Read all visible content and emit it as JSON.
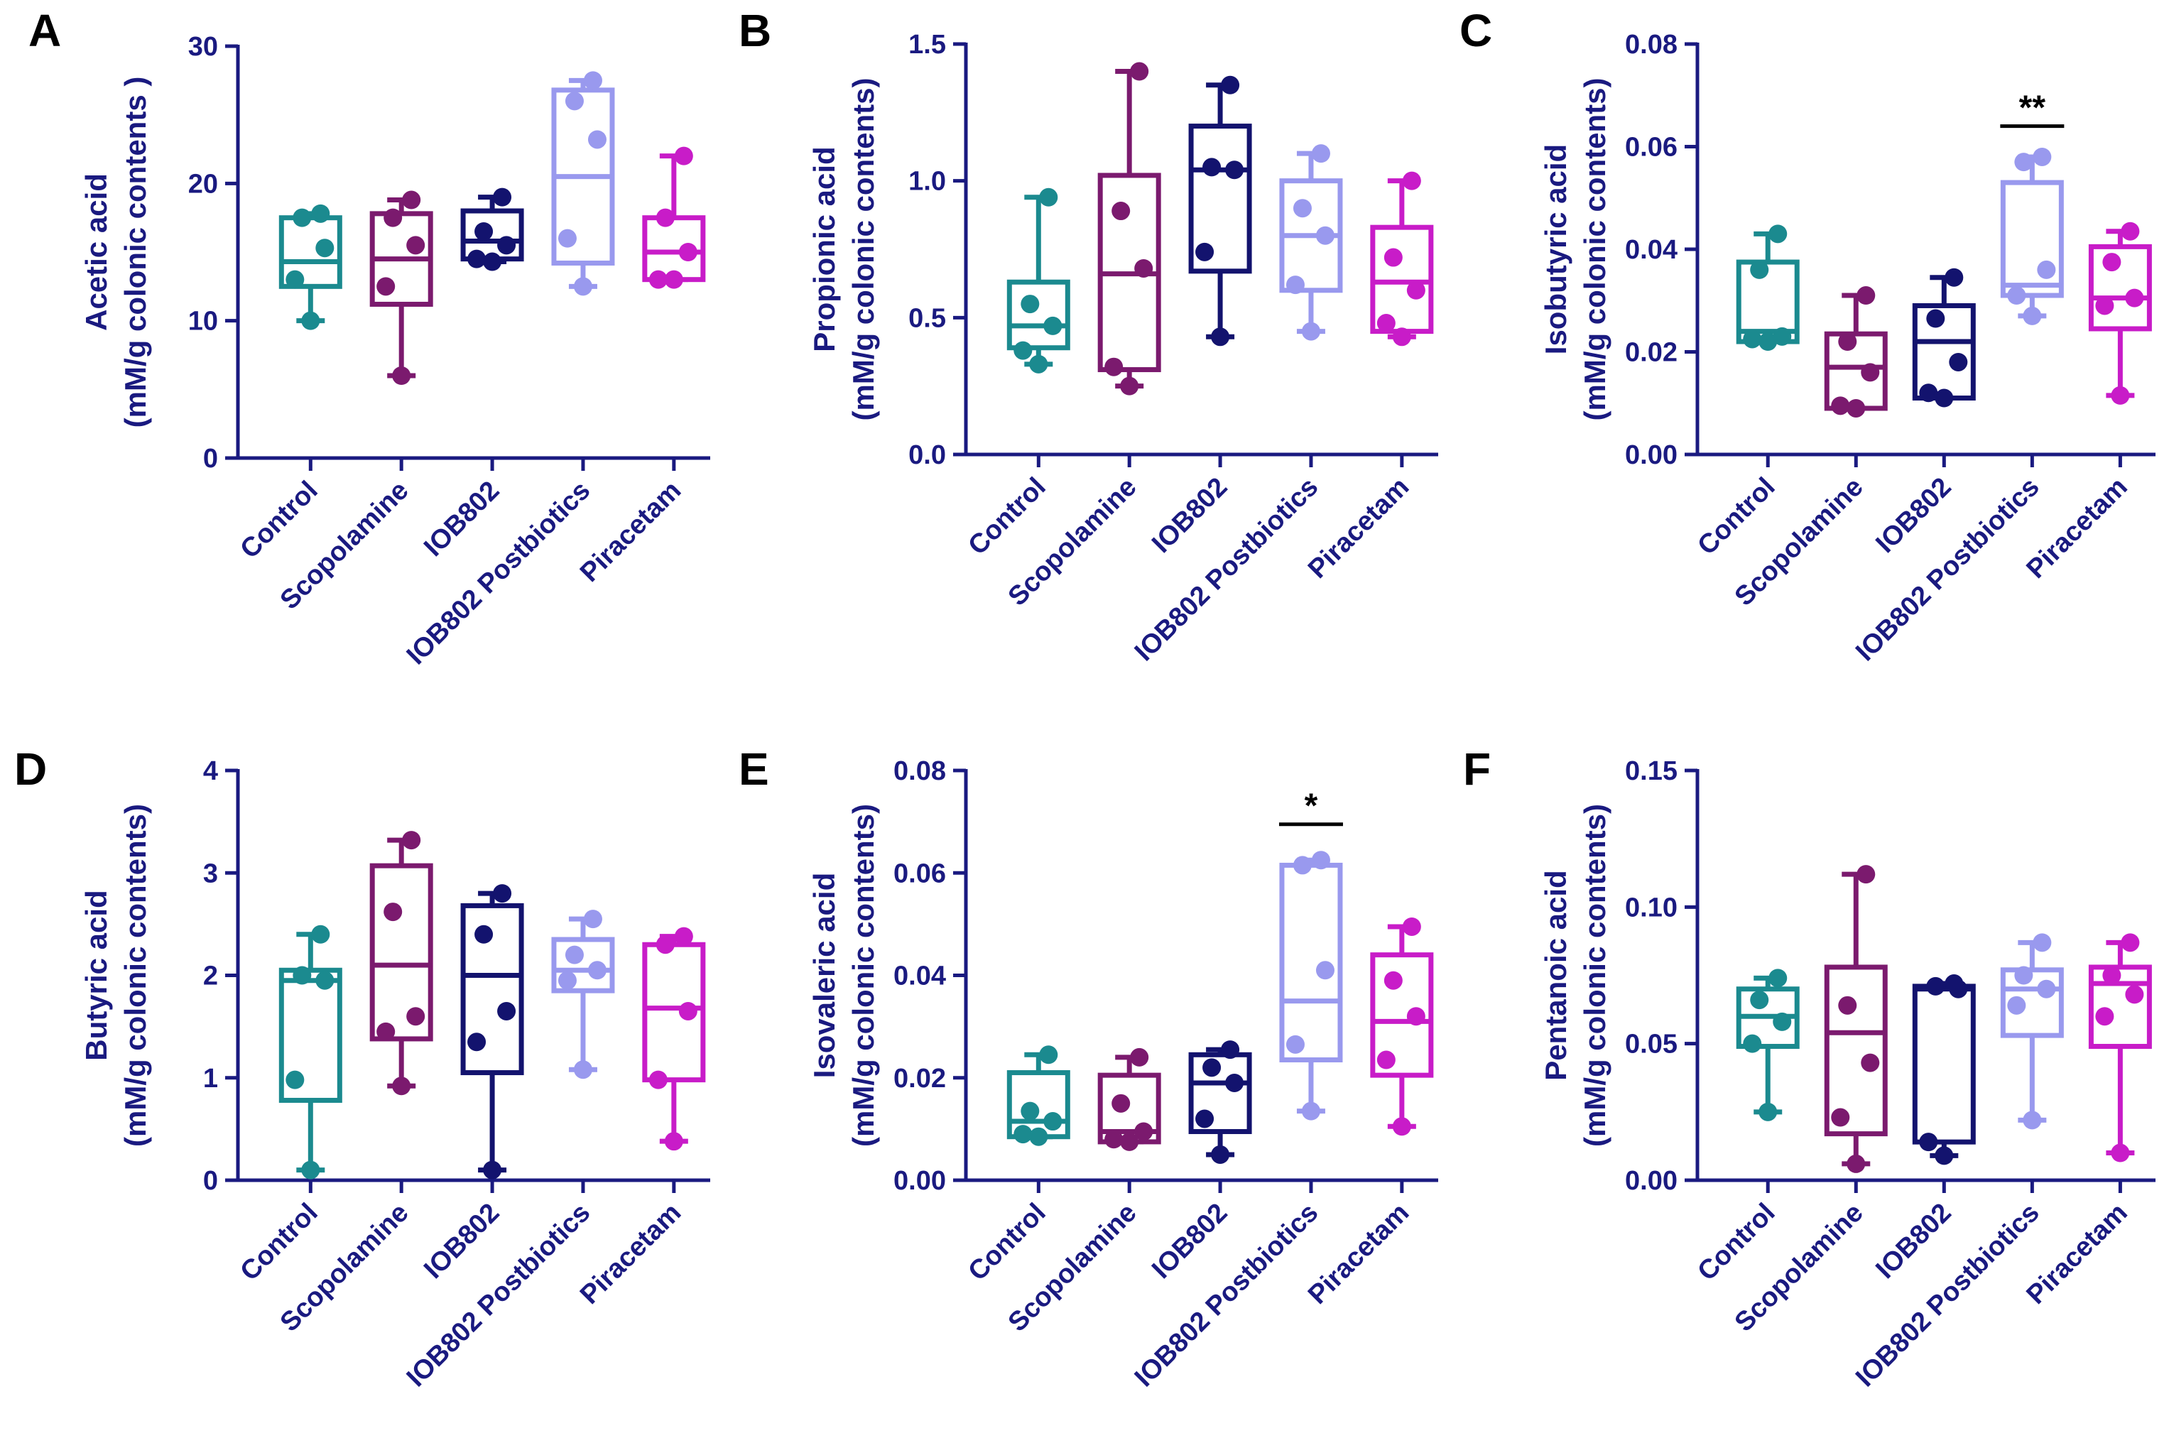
{
  "chart_data": [
    {
      "panel": "A",
      "type": "box",
      "ylabel_line1": "Acetic acid",
      "ylabel_line2": "(mM/g colonic contents )",
      "ylim": [
        0,
        30
      ],
      "yticks": [
        0,
        10,
        20,
        30
      ],
      "ytick_labels": [
        "0",
        "10",
        "20",
        "30"
      ],
      "categories": [
        "Control",
        "Scopolamine",
        "IOB802",
        "IOB802 Postbiotics",
        "Piracetam"
      ],
      "boxes": [
        {
          "min": 10,
          "q1": 12.5,
          "median": 14.3,
          "q3": 17.5,
          "max": 17.8,
          "points": [
            10,
            13,
            15.3,
            17.5,
            17.8
          ]
        },
        {
          "min": 6,
          "q1": 11.2,
          "median": 14.5,
          "q3": 17.8,
          "max": 18.8,
          "points": [
            6,
            12.5,
            15.5,
            17.5,
            18.8
          ]
        },
        {
          "min": 14.3,
          "q1": 14.5,
          "median": 15.8,
          "q3": 18,
          "max": 19,
          "points": [
            14.3,
            14.5,
            15.5,
            16.5,
            19
          ]
        },
        {
          "min": 12.5,
          "q1": 14.2,
          "median": 20.5,
          "q3": 26.8,
          "max": 27.5,
          "points": [
            12.5,
            16,
            23.2,
            26,
            27.5
          ]
        },
        {
          "min": 13,
          "q1": 13,
          "median": 15,
          "q3": 17.5,
          "max": 22,
          "points": [
            13,
            13,
            15,
            17.5,
            22
          ]
        }
      ],
      "significance": []
    },
    {
      "panel": "B",
      "type": "box",
      "ylabel_line1": "Propionic acid",
      "ylabel_line2": "(mM/g colonic contents)",
      "ylim": [
        0,
        1.5
      ],
      "yticks": [
        0,
        0.5,
        1.0,
        1.5
      ],
      "ytick_labels": [
        "0.0",
        "0.5",
        "1.0",
        "1.5"
      ],
      "categories": [
        "Control",
        "Scopolamine",
        "IOB802",
        "IOB802 Postbiotics",
        "Piracetam"
      ],
      "boxes": [
        {
          "min": 0.33,
          "q1": 0.39,
          "median": 0.47,
          "q3": 0.63,
          "max": 0.94,
          "points": [
            0.33,
            0.38,
            0.47,
            0.55,
            0.94
          ]
        },
        {
          "min": 0.25,
          "q1": 0.31,
          "median": 0.66,
          "q3": 1.02,
          "max": 1.4,
          "points": [
            0.25,
            0.32,
            0.68,
            0.89,
            1.4
          ]
        },
        {
          "min": 0.43,
          "q1": 0.67,
          "median": 1.04,
          "q3": 1.2,
          "max": 1.35,
          "points": [
            0.43,
            0.74,
            1.04,
            1.05,
            1.35
          ]
        },
        {
          "min": 0.45,
          "q1": 0.6,
          "median": 0.8,
          "q3": 1.0,
          "max": 1.1,
          "points": [
            0.45,
            0.62,
            0.8,
            0.9,
            1.1
          ]
        },
        {
          "min": 0.43,
          "q1": 0.45,
          "median": 0.63,
          "q3": 0.83,
          "max": 1.0,
          "points": [
            0.43,
            0.48,
            0.6,
            0.72,
            1.0
          ]
        }
      ],
      "significance": []
    },
    {
      "panel": "C",
      "type": "box",
      "ylabel_line1": "Isobutyric acid",
      "ylabel_line2": "(mM/g colonic contents)",
      "ylim": [
        0,
        0.08
      ],
      "yticks": [
        0,
        0.02,
        0.04,
        0.06,
        0.08
      ],
      "ytick_labels": [
        "0.00",
        "0.02",
        "0.04",
        "0.06",
        "0.08"
      ],
      "categories": [
        "Control",
        "Scopolamine",
        "IOB802",
        "IOB802 Postbiotics",
        "Piracetam"
      ],
      "boxes": [
        {
          "min": 0.022,
          "q1": 0.022,
          "median": 0.024,
          "q3": 0.0375,
          "max": 0.043,
          "points": [
            0.022,
            0.0225,
            0.023,
            0.036,
            0.043
          ]
        },
        {
          "min": 0.009,
          "q1": 0.009,
          "median": 0.017,
          "q3": 0.0235,
          "max": 0.031,
          "points": [
            0.009,
            0.0095,
            0.016,
            0.022,
            0.031
          ]
        },
        {
          "min": 0.011,
          "q1": 0.011,
          "median": 0.022,
          "q3": 0.029,
          "max": 0.0345,
          "points": [
            0.011,
            0.012,
            0.018,
            0.0265,
            0.0345
          ]
        },
        {
          "min": 0.027,
          "q1": 0.031,
          "median": 0.033,
          "q3": 0.053,
          "max": 0.058,
          "points": [
            0.027,
            0.031,
            0.036,
            0.057,
            0.058
          ]
        },
        {
          "min": 0.0115,
          "q1": 0.0245,
          "median": 0.0305,
          "q3": 0.0405,
          "max": 0.0435,
          "points": [
            0.0115,
            0.029,
            0.0305,
            0.0375,
            0.0435
          ]
        }
      ],
      "significance": [
        {
          "group_index": 3,
          "label": "**",
          "y": 0.064
        }
      ]
    },
    {
      "panel": "D",
      "type": "box",
      "ylabel_line1": "Butyric acid",
      "ylabel_line2": "(mM/g colonic contents)",
      "ylim": [
        0,
        4
      ],
      "yticks": [
        0,
        1,
        2,
        3,
        4
      ],
      "ytick_labels": [
        "0",
        "1",
        "2",
        "3",
        "4"
      ],
      "categories": [
        "Control",
        "Scopolamine",
        "IOB802",
        "IOB802 Postbiotics",
        "Piracetam"
      ],
      "boxes": [
        {
          "min": 0.1,
          "q1": 0.78,
          "median": 1.95,
          "q3": 2.05,
          "max": 2.4,
          "points": [
            0.1,
            0.98,
            1.95,
            2.0,
            2.4
          ]
        },
        {
          "min": 0.92,
          "q1": 1.38,
          "median": 2.1,
          "q3": 3.07,
          "max": 3.32,
          "points": [
            0.92,
            1.45,
            1.6,
            2.62,
            3.32
          ]
        },
        {
          "min": 0.1,
          "q1": 1.05,
          "median": 2.0,
          "q3": 2.68,
          "max": 2.8,
          "points": [
            0.1,
            1.35,
            1.65,
            2.4,
            2.8
          ]
        },
        {
          "min": 1.08,
          "q1": 1.85,
          "median": 2.05,
          "q3": 2.35,
          "max": 2.55,
          "points": [
            1.08,
            1.95,
            2.05,
            2.2,
            2.55
          ]
        },
        {
          "min": 0.38,
          "q1": 0.98,
          "median": 1.68,
          "q3": 2.3,
          "max": 2.38,
          "points": [
            0.38,
            0.98,
            1.65,
            2.3,
            2.38
          ]
        }
      ],
      "significance": []
    },
    {
      "panel": "E",
      "type": "box",
      "ylabel_line1": "Isovaleric acid",
      "ylabel_line2": "(mM/g colonic contents)",
      "ylim": [
        0,
        0.08
      ],
      "yticks": [
        0,
        0.02,
        0.04,
        0.06,
        0.08
      ],
      "ytick_labels": [
        "0.00",
        "0.02",
        "0.04",
        "0.06",
        "0.08"
      ],
      "categories": [
        "Control",
        "Scopolamine",
        "IOB802",
        "IOB802 Postbiotics",
        "Piracetam"
      ],
      "boxes": [
        {
          "min": 0.0085,
          "q1": 0.0085,
          "median": 0.0115,
          "q3": 0.021,
          "max": 0.0245,
          "points": [
            0.0085,
            0.009,
            0.0115,
            0.0135,
            0.0245
          ]
        },
        {
          "min": 0.0075,
          "q1": 0.0075,
          "median": 0.0095,
          "q3": 0.0205,
          "max": 0.024,
          "points": [
            0.0075,
            0.008,
            0.0095,
            0.015,
            0.024
          ]
        },
        {
          "min": 0.005,
          "q1": 0.0095,
          "median": 0.019,
          "q3": 0.0245,
          "max": 0.0255,
          "points": [
            0.005,
            0.012,
            0.019,
            0.022,
            0.0255
          ]
        },
        {
          "min": 0.0135,
          "q1": 0.0235,
          "median": 0.035,
          "q3": 0.0615,
          "max": 0.0625,
          "points": [
            0.0135,
            0.0265,
            0.041,
            0.0615,
            0.0625
          ]
        },
        {
          "min": 0.0105,
          "q1": 0.0205,
          "median": 0.031,
          "q3": 0.044,
          "max": 0.0495,
          "points": [
            0.0105,
            0.0235,
            0.032,
            0.039,
            0.0495
          ]
        }
      ],
      "significance": [
        {
          "group_index": 3,
          "label": "*",
          "y": 0.0695
        }
      ]
    },
    {
      "panel": "F",
      "type": "box",
      "ylabel_line1": "Pentanoic acid",
      "ylabel_line2": "(mM/g colonic contents)",
      "ylim": [
        0,
        0.15
      ],
      "yticks": [
        0,
        0.05,
        0.1,
        0.15
      ],
      "ytick_labels": [
        "0.00",
        "0.05",
        "0.10",
        "0.15"
      ],
      "categories": [
        "Control",
        "Scopolamine",
        "IOB802",
        "IOB802 Postbiotics",
        "Piracetam"
      ],
      "boxes": [
        {
          "min": 0.025,
          "q1": 0.049,
          "median": 0.06,
          "q3": 0.07,
          "max": 0.074,
          "points": [
            0.025,
            0.05,
            0.058,
            0.066,
            0.074
          ]
        },
        {
          "min": 0.006,
          "q1": 0.017,
          "median": 0.054,
          "q3": 0.078,
          "max": 0.112,
          "points": [
            0.006,
            0.023,
            0.043,
            0.064,
            0.112
          ]
        },
        {
          "min": 0.009,
          "q1": 0.014,
          "median": 0.07,
          "q3": 0.071,
          "max": 0.072,
          "points": [
            0.009,
            0.014,
            0.07,
            0.071,
            0.072
          ]
        },
        {
          "min": 0.022,
          "q1": 0.053,
          "median": 0.07,
          "q3": 0.077,
          "max": 0.087,
          "points": [
            0.022,
            0.064,
            0.07,
            0.075,
            0.087
          ]
        },
        {
          "min": 0.01,
          "q1": 0.049,
          "median": 0.072,
          "q3": 0.078,
          "max": 0.087,
          "points": [
            0.01,
            0.06,
            0.068,
            0.075,
            0.087
          ]
        }
      ],
      "significance": []
    }
  ],
  "group_colors": [
    "#1b8a8f",
    "#7b1a6e",
    "#13136e",
    "#9999ee",
    "#c81cc8"
  ],
  "axis_color": "#1a1a80"
}
